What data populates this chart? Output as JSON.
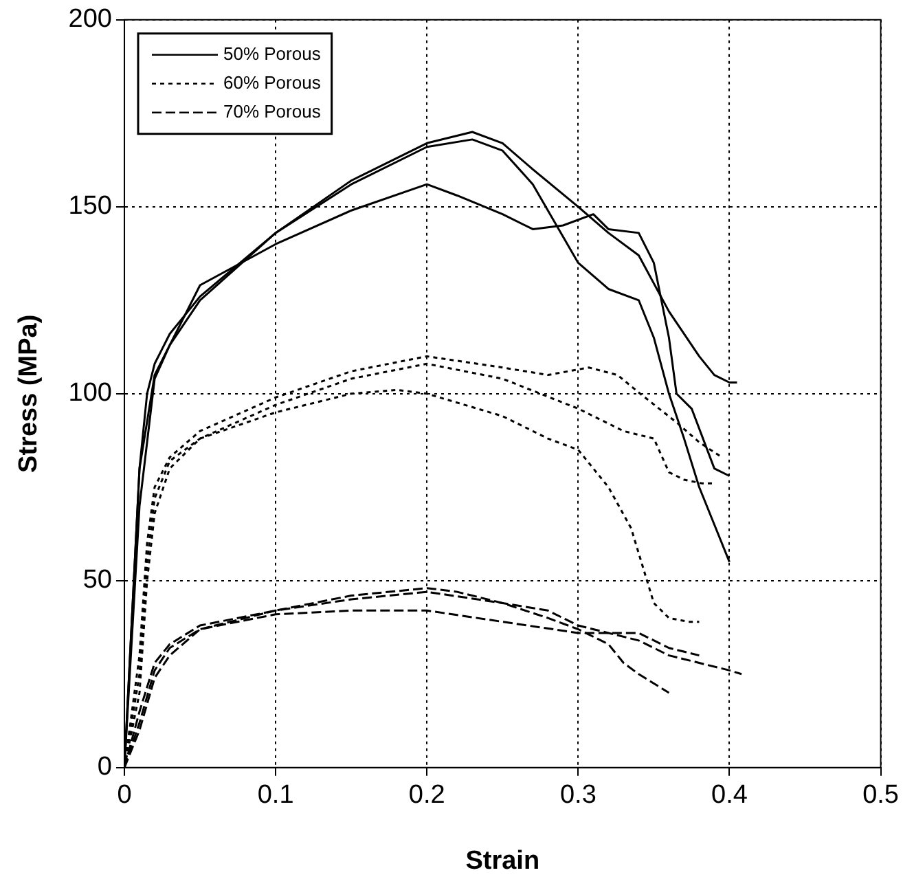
{
  "chart_data": {
    "type": "line",
    "xlabel": "Strain",
    "ylabel": "Stress (MPa)",
    "xlim": [
      0,
      0.5
    ],
    "ylim": [
      0,
      200
    ],
    "xticks": [
      0,
      0.1,
      0.2,
      0.3,
      0.4,
      0.5
    ],
    "yticks": [
      0,
      50,
      100,
      150,
      200
    ],
    "grid": true,
    "legend": "top left",
    "marker": "none",
    "series": [
      {
        "name": "50% Porous",
        "color": "#000000",
        "line_style": "solid",
        "x": [
          0,
          0.005,
          0.01,
          0.015,
          0.02,
          0.03,
          0.05,
          0.1,
          0.15,
          0.2,
          0.23,
          0.25,
          0.27,
          0.3,
          0.32,
          0.34,
          0.36,
          0.38,
          0.39,
          0.4,
          0.405
        ],
        "values": [
          0,
          40,
          80,
          100,
          108,
          116,
          126,
          143,
          157,
          167,
          170,
          167,
          160,
          150,
          143,
          137,
          122,
          110,
          105,
          103,
          103
        ]
      },
      {
        "color": "#000000",
        "line_style": "solid",
        "x": [
          0,
          0.01,
          0.02,
          0.03,
          0.05,
          0.1,
          0.15,
          0.2,
          0.23,
          0.25,
          0.27,
          0.3,
          0.32,
          0.34,
          0.35,
          0.36,
          0.37,
          0.38,
          0.39,
          0.4
        ],
        "values": [
          0,
          70,
          104,
          113,
          125,
          143,
          156,
          166,
          168,
          165,
          156,
          135,
          128,
          125,
          115,
          100,
          88,
          75,
          65,
          55
        ]
      },
      {
        "color": "#000000",
        "line_style": "solid",
        "x": [
          0,
          0.01,
          0.02,
          0.05,
          0.1,
          0.15,
          0.2,
          0.22,
          0.25,
          0.27,
          0.29,
          0.31,
          0.32,
          0.34,
          0.35,
          0.36,
          0.365,
          0.375,
          0.39,
          0.4
        ],
        "values": [
          0,
          80,
          105,
          129,
          140,
          149,
          156,
          153,
          148,
          144,
          145,
          148,
          144,
          143,
          135,
          115,
          100,
          96,
          80,
          78
        ]
      },
      {
        "name": "60% Porous",
        "color": "#000000",
        "line_style": "dotted",
        "x": [
          0,
          0.01,
          0.015,
          0.02,
          0.03,
          0.05,
          0.1,
          0.15,
          0.2,
          0.25,
          0.28,
          0.307,
          0.326,
          0.341,
          0.366,
          0.38,
          0.395
        ],
        "values": [
          0,
          30,
          60,
          75,
          83,
          90,
          99,
          106,
          110,
          107,
          105,
          107,
          105,
          100,
          92,
          87,
          83
        ]
      },
      {
        "color": "#000000",
        "line_style": "dotted",
        "x": [
          0,
          0.01,
          0.015,
          0.02,
          0.03,
          0.05,
          0.1,
          0.15,
          0.2,
          0.25,
          0.3,
          0.33,
          0.35,
          0.36,
          0.37,
          0.382,
          0.39
        ],
        "values": [
          0,
          25,
          55,
          72,
          82,
          88,
          97,
          104,
          108,
          104,
          96,
          90,
          88,
          79,
          77,
          76,
          76
        ]
      },
      {
        "color": "#000000",
        "line_style": "dotted",
        "x": [
          0,
          0.01,
          0.015,
          0.02,
          0.03,
          0.05,
          0.1,
          0.15,
          0.18,
          0.2,
          0.25,
          0.28,
          0.3,
          0.32,
          0.335,
          0.35,
          0.36,
          0.373,
          0.38
        ],
        "values": [
          0,
          20,
          50,
          68,
          80,
          88,
          95,
          100,
          101,
          100,
          94,
          88,
          85,
          75,
          64,
          44,
          40,
          39,
          39
        ]
      },
      {
        "name": "70% Porous",
        "color": "#000000",
        "line_style": "dashed",
        "x": [
          0,
          0.01,
          0.02,
          0.03,
          0.05,
          0.1,
          0.15,
          0.2,
          0.22,
          0.25,
          0.28,
          0.3,
          0.32,
          0.33,
          0.34,
          0.36
        ],
        "values": [
          0,
          15,
          28,
          33,
          38,
          42,
          46,
          48,
          47,
          44,
          40,
          37,
          33,
          28,
          25,
          20
        ]
      },
      {
        "color": "#000000",
        "line_style": "dashed",
        "x": [
          0,
          0.01,
          0.02,
          0.03,
          0.05,
          0.1,
          0.15,
          0.2,
          0.25,
          0.28,
          0.3,
          0.32,
          0.34,
          0.36,
          0.38,
          0.4,
          0.408
        ],
        "values": [
          0,
          12,
          26,
          32,
          37,
          42,
          45,
          47,
          44,
          42,
          38,
          36,
          34,
          30,
          28,
          26,
          25
        ]
      },
      {
        "color": "#000000",
        "line_style": "dashed",
        "x": [
          0,
          0.01,
          0.02,
          0.03,
          0.05,
          0.1,
          0.15,
          0.2,
          0.25,
          0.3,
          0.32,
          0.34,
          0.36,
          0.38
        ],
        "values": [
          0,
          10,
          24,
          30,
          37,
          41,
          42,
          42,
          39,
          36,
          36,
          36,
          32,
          30
        ]
      }
    ]
  }
}
